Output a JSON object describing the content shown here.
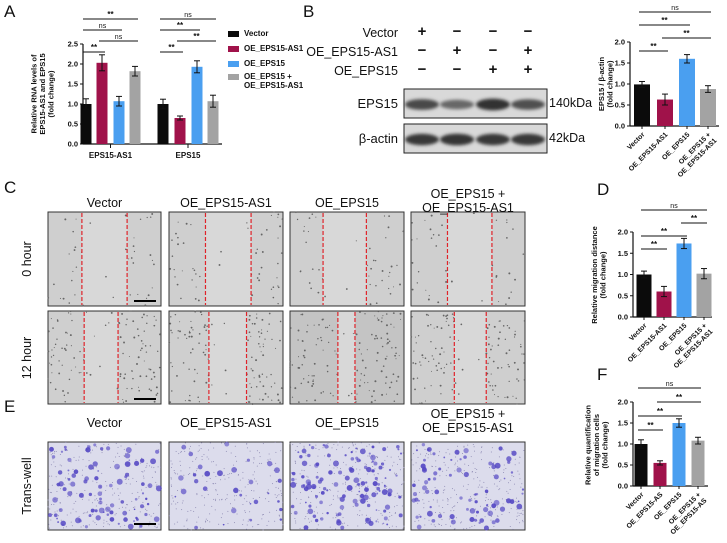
{
  "panel_labels": {
    "a": "A",
    "b": "B",
    "c": "C",
    "d": "D",
    "e": "E",
    "f": "F"
  },
  "colors": {
    "vector": "#0b0b0b",
    "oe_eps15_as1": "#a0124a",
    "oe_eps15": "#4a9ff0",
    "combo": "#a3a3a3",
    "scratch_line": "#e0232a",
    "transwell_stain": "#5548c4"
  },
  "legend": [
    {
      "label": "Vector",
      "color_key": "vector"
    },
    {
      "label": "OE_EPS15-AS1",
      "color_key": "oe_eps15_as1"
    },
    {
      "label": "OE_EPS15",
      "color_key": "oe_eps15"
    },
    {
      "label": "OE_EPS15 +\nOE_EPS15-AS1",
      "color_key": "combo"
    }
  ],
  "western_blot": {
    "rows": [
      {
        "label": "Vector",
        "signs": [
          "+",
          "−",
          "−",
          "−"
        ]
      },
      {
        "label": "OE_EPS15-AS1",
        "signs": [
          "−",
          "+",
          "−",
          "+"
        ]
      },
      {
        "label": "OE_EPS15",
        "signs": [
          "−",
          "−",
          "+",
          "+"
        ]
      }
    ],
    "bands": [
      {
        "label": "EPS15",
        "mw": "140kDa",
        "intensities": [
          0.8,
          0.6,
          0.95,
          0.75
        ]
      },
      {
        "label": "β-actin",
        "mw": "42kDa",
        "intensities": [
          0.9,
          0.92,
          0.9,
          0.9
        ]
      }
    ]
  },
  "conditions": [
    "Vector",
    "OE_EPS15-AS1",
    "OE_EPS15",
    "OE_EPS15 +\nOE_EPS15-AS1"
  ],
  "scratch": {
    "rows": [
      "0 hour",
      "12 hour"
    ]
  },
  "transwell": {
    "row": "Trans-well"
  },
  "chart_data": [
    {
      "id": "A",
      "type": "bar",
      "ylabel": "Relative RNA levels of\nEPS15-AS1 and EPS15\n(fold change)",
      "ylim": [
        0,
        2.5
      ],
      "yticks": [
        "0.0",
        "0.5",
        "1.0",
        "1.5",
        "2.0",
        "2.5"
      ],
      "categories": [
        "EPS15-AS1",
        "EPS15"
      ],
      "series": [
        {
          "name": "Vector",
          "values": [
            1.0,
            1.0
          ],
          "errors": [
            0.13,
            0.12
          ]
        },
        {
          "name": "OE_EPS15-AS1",
          "values": [
            2.03,
            0.65
          ],
          "errors": [
            0.2,
            0.05
          ]
        },
        {
          "name": "OE_EPS15",
          "values": [
            1.07,
            1.93
          ],
          "errors": [
            0.12,
            0.15
          ]
        },
        {
          "name": "OE_EPS15 + OE_EPS15-AS1",
          "values": [
            1.82,
            1.07
          ],
          "errors": [
            0.12,
            0.15
          ]
        }
      ],
      "significance": [
        [
          {
            "pair": [
              0,
              1
            ],
            "label": "**"
          },
          {
            "pair": [
              1,
              3
            ],
            "label": "ns"
          },
          {
            "pair": [
              0,
              2
            ],
            "label": "ns"
          },
          {
            "pair": [
              0,
              3
            ],
            "label": "**"
          }
        ],
        [
          {
            "pair": [
              0,
              1
            ],
            "label": "**"
          },
          {
            "pair": [
              1,
              3
            ],
            "label": "**"
          },
          {
            "pair": [
              0,
              2
            ],
            "label": "**"
          },
          {
            "pair": [
              0,
              3
            ],
            "label": "ns"
          }
        ]
      ],
      "legend_position": "right"
    },
    {
      "id": "B",
      "type": "bar",
      "ylabel": "EPS15 / β-actin\n(fold change)",
      "ylim": [
        0,
        2.0
      ],
      "yticks": [
        "0.0",
        "0.5",
        "1.0",
        "1.5",
        "2.0"
      ],
      "categories": [
        "Vector",
        "OE_EPS15-AS1",
        "OE_EPS15",
        "OE_EPS15 +\nOE_EPS15-AS1"
      ],
      "values": [
        0.99,
        0.63,
        1.6,
        0.88
      ],
      "errors": [
        0.07,
        0.13,
        0.1,
        0.08
      ],
      "significance": [
        {
          "pair": [
            0,
            1
          ],
          "label": "**"
        },
        {
          "pair": [
            1,
            3
          ],
          "label": "**"
        },
        {
          "pair": [
            0,
            2
          ],
          "label": "**"
        },
        {
          "pair": [
            0,
            3
          ],
          "label": "ns"
        }
      ]
    },
    {
      "id": "D",
      "type": "bar",
      "ylabel": "Relative migration distance\n(fold change)",
      "ylim": [
        0,
        2.0
      ],
      "yticks": [
        "0.0",
        "0.5",
        "1.0",
        "1.5",
        "2.0"
      ],
      "categories": [
        "Vector",
        "OE_EPS15-AS1",
        "OE_EPS15",
        "OE_EPS15 +\nOE_EPS15-AS1"
      ],
      "values": [
        1.0,
        0.6,
        1.73,
        1.02
      ],
      "errors": [
        0.08,
        0.12,
        0.12,
        0.12
      ],
      "significance": [
        {
          "pair": [
            0,
            1
          ],
          "label": "**"
        },
        {
          "pair": [
            0,
            2
          ],
          "label": "**"
        },
        {
          "pair": [
            2,
            3
          ],
          "label": "**"
        },
        {
          "pair": [
            0,
            3
          ],
          "label": "ns"
        }
      ]
    },
    {
      "id": "F",
      "type": "bar",
      "ylabel": "Relative quantification\nof migration cells\n(fold change)",
      "ylim": [
        0,
        2.0
      ],
      "yticks": [
        "0.0",
        "0.5",
        "1.0",
        "1.5",
        "2.0"
      ],
      "categories": [
        "Vector",
        "OE_EPS15-AS",
        "OE_EPS15",
        "OE_EPS15 +\nOE_EPS15-AS"
      ],
      "values": [
        1.0,
        0.55,
        1.5,
        1.08
      ],
      "errors": [
        0.1,
        0.05,
        0.1,
        0.08
      ],
      "significance": [
        {
          "pair": [
            0,
            1
          ],
          "label": "**"
        },
        {
          "pair": [
            0,
            2
          ],
          "label": "**"
        },
        {
          "pair": [
            1,
            3
          ],
          "label": "**"
        },
        {
          "pair": [
            0,
            3
          ],
          "label": "ns"
        }
      ]
    }
  ]
}
